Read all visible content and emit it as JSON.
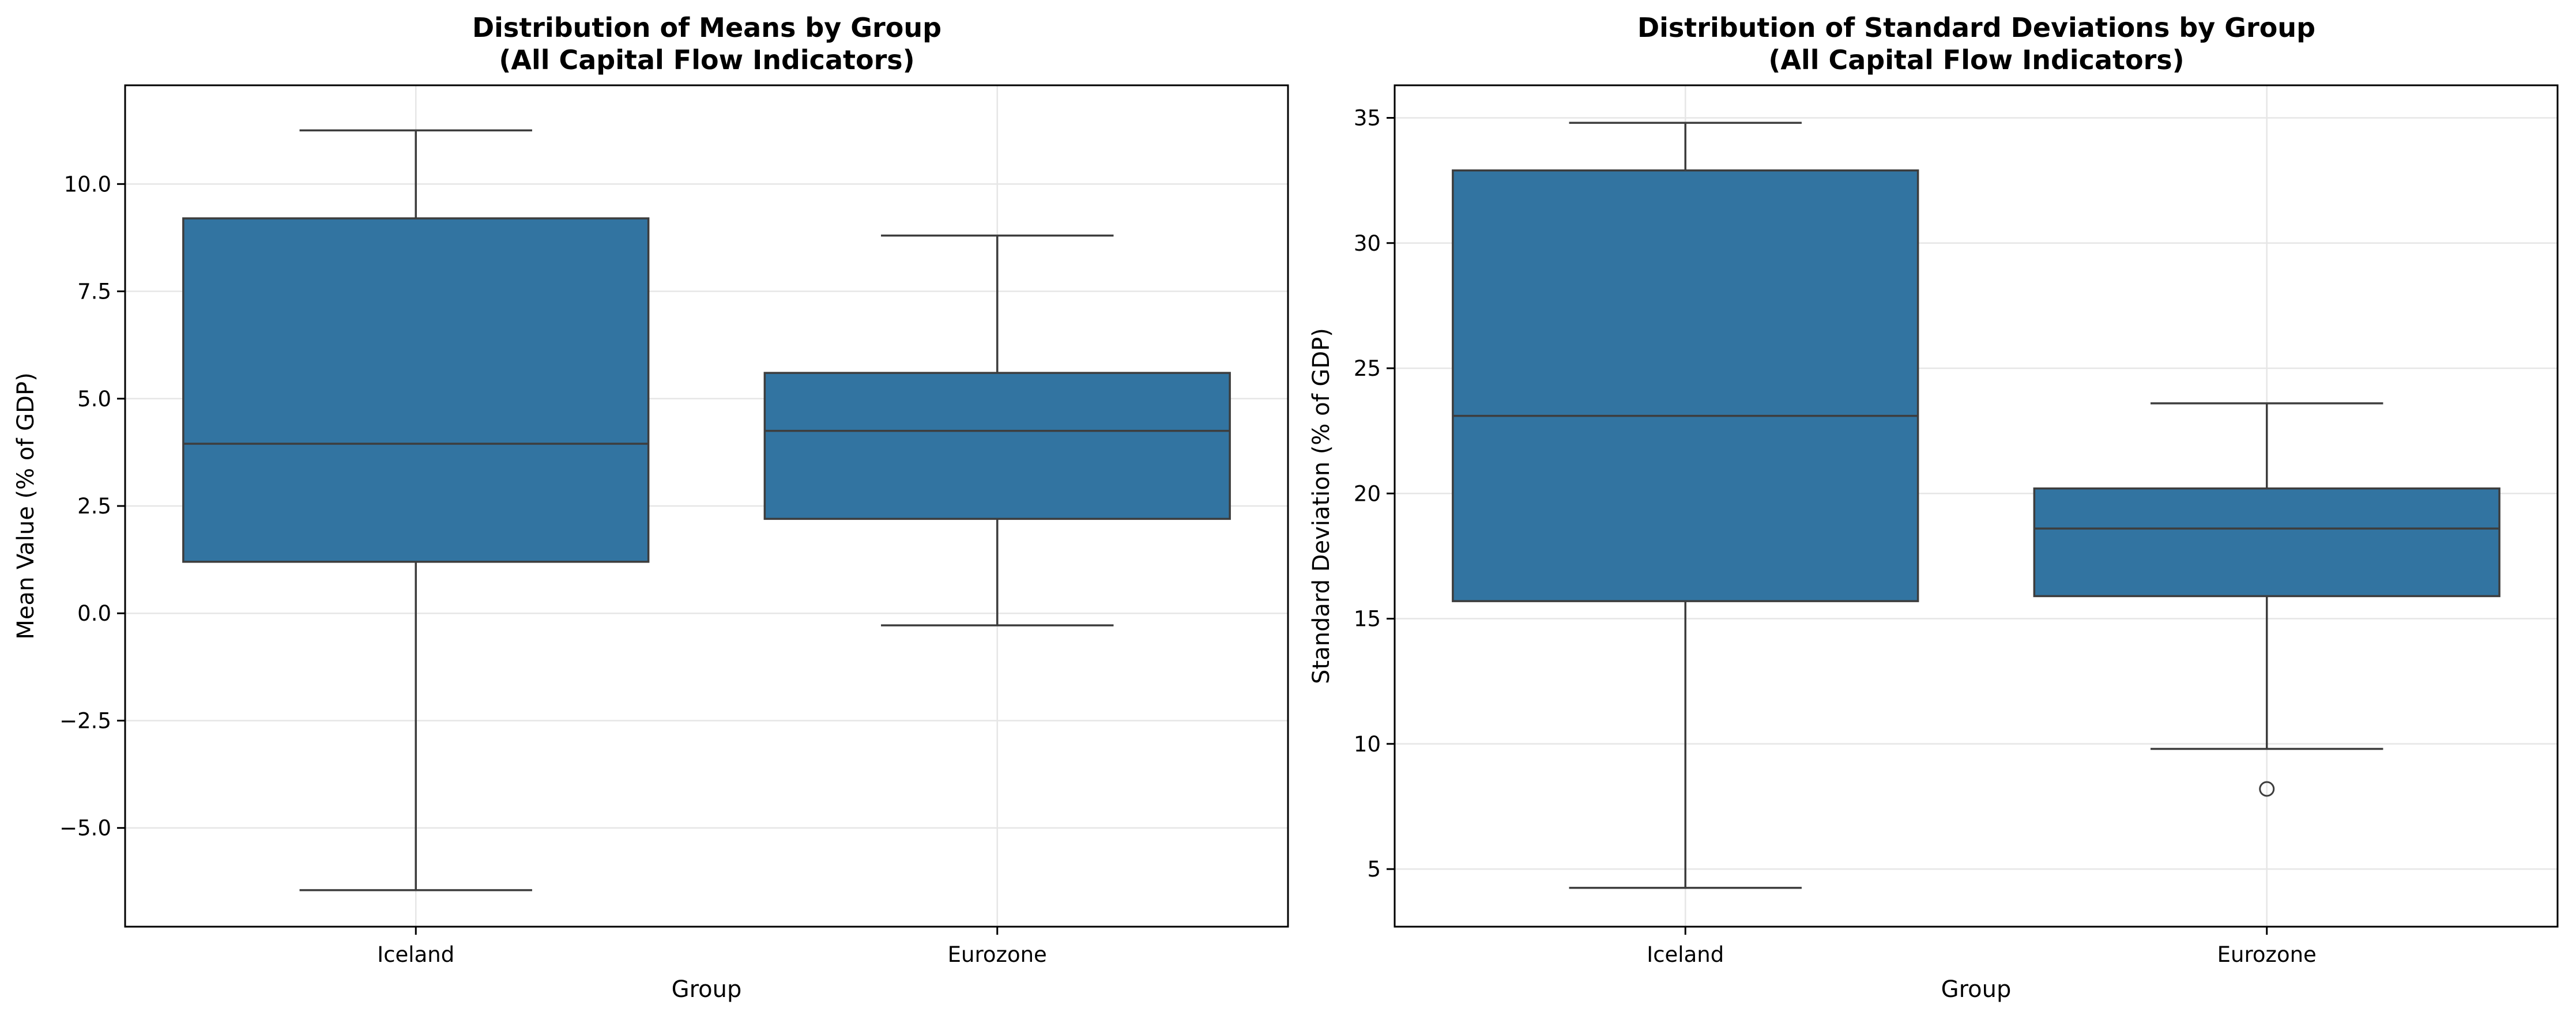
{
  "chart_data": [
    {
      "type": "box",
      "title_lines": [
        "Distribution of Means by Group",
        "(All Capital Flow Indicators)"
      ],
      "xlabel": "Group",
      "ylabel": "Mean Value (% of GDP)",
      "ylim": [
        -7.3,
        12.3
      ],
      "yticks": [
        -5.0,
        -2.5,
        0.0,
        2.5,
        5.0,
        7.5,
        10.0
      ],
      "ytick_labels": [
        "−5.0",
        "−2.5",
        "0.0",
        "2.5",
        "5.0",
        "7.5",
        "10.0"
      ],
      "grid": true,
      "box_color": "#3274a1",
      "categories": [
        "Iceland",
        "Eurozone"
      ],
      "boxes": [
        {
          "whisker_low": -6.45,
          "q1": 1.2,
          "median": 3.95,
          "q3": 9.2,
          "whisker_high": 11.25,
          "outliers": []
        },
        {
          "whisker_low": -0.28,
          "q1": 2.2,
          "median": 4.25,
          "q3": 5.6,
          "whisker_high": 8.8,
          "outliers": []
        }
      ]
    },
    {
      "type": "box",
      "title_lines": [
        "Distribution of Standard Deviations by Group",
        "(All Capital Flow Indicators)"
      ],
      "xlabel": "Group",
      "ylabel": "Standard Deviation (% of GDP)",
      "ylim": [
        2.7,
        36.3
      ],
      "yticks": [
        5,
        10,
        15,
        20,
        25,
        30,
        35
      ],
      "ytick_labels": [
        "5",
        "10",
        "15",
        "20",
        "25",
        "30",
        "35"
      ],
      "grid": true,
      "box_color": "#3274a1",
      "categories": [
        "Iceland",
        "Eurozone"
      ],
      "boxes": [
        {
          "whisker_low": 4.25,
          "q1": 15.7,
          "median": 23.1,
          "q3": 32.9,
          "whisker_high": 34.8,
          "outliers": []
        },
        {
          "whisker_low": 9.8,
          "q1": 15.9,
          "median": 18.6,
          "q3": 20.2,
          "whisker_high": 23.6,
          "outliers": [
            8.2
          ]
        }
      ]
    }
  ]
}
